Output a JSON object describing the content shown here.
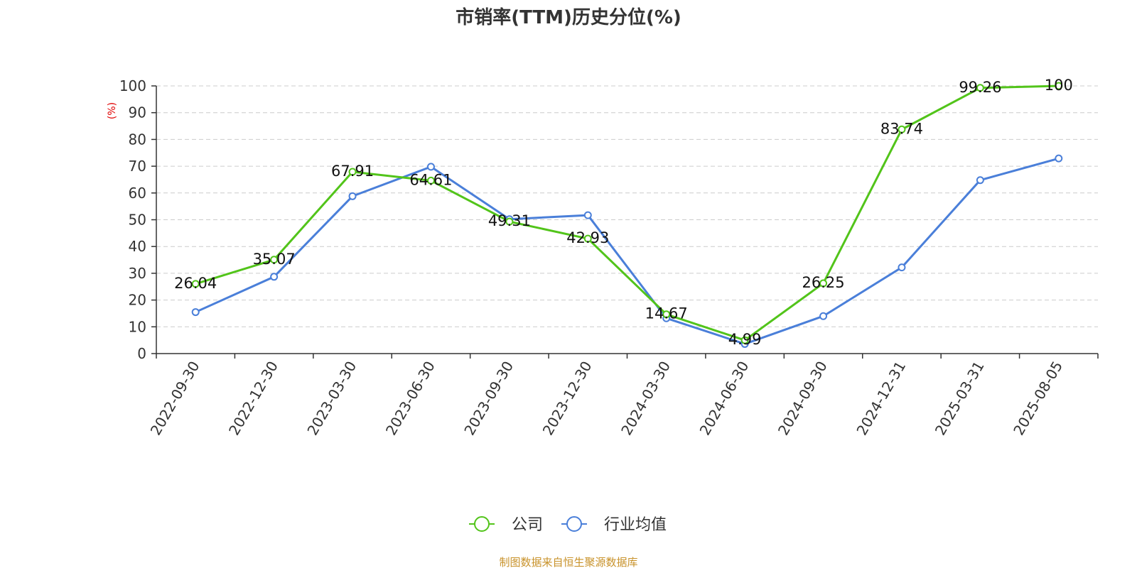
{
  "chart_data": {
    "type": "line",
    "title": "市销率(TTM)历史分位(%)",
    "ylabel": "(%)",
    "xlabel": "",
    "categories": [
      "2022-09-30",
      "2022-12-30",
      "2023-03-30",
      "2023-06-30",
      "2023-09-30",
      "2023-12-30",
      "2024-03-30",
      "2024-06-30",
      "2024-09-30",
      "2024-12-31",
      "2025-03-31",
      "2025-08-05"
    ],
    "ylim": [
      0,
      100
    ],
    "yticks": [
      0,
      10,
      20,
      30,
      40,
      50,
      60,
      70,
      80,
      90,
      100
    ],
    "grid": true,
    "legend_position": "bottom-center",
    "series": [
      {
        "name": "公司",
        "color": "#52c41a",
        "values": [
          26.04,
          35.07,
          67.91,
          64.61,
          49.31,
          42.93,
          14.67,
          4.99,
          26.25,
          83.74,
          99.26,
          100
        ],
        "labels": [
          "26.04",
          "35.07",
          "67.91",
          "64.61",
          "49.31",
          "42.93",
          "14.67",
          "4.99",
          "26.25",
          "83.74",
          "99.26",
          "100"
        ]
      },
      {
        "name": "行业均值",
        "color": "#4a7fd9",
        "values": [
          15.5,
          28.7,
          58.8,
          69.8,
          50.2,
          51.7,
          13.2,
          3.6,
          14.0,
          32.2,
          64.8,
          72.9
        ]
      }
    ]
  },
  "source_text": "制图数据来自恒生聚源数据库"
}
